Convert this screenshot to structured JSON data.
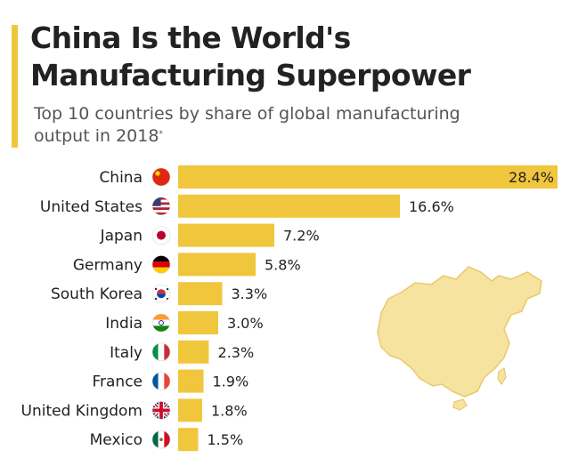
{
  "header": {
    "title_line1": "China Is the World's",
    "title_line2": "Manufacturing Superpower",
    "subtitle_line1": "Top 10 countries by share of global manufacturing",
    "subtitle_line2": "output in 2018",
    "subtitle_mark": "*"
  },
  "colors": {
    "accent": "#f0c63c",
    "bar": "#f0c63c",
    "map": "#f7e3a0",
    "map_stroke": "#e9c96a",
    "text": "#222222"
  },
  "chart_data": {
    "type": "bar",
    "orientation": "horizontal",
    "categories": [
      "China",
      "United States",
      "Japan",
      "Germany",
      "South Korea",
      "India",
      "Italy",
      "France",
      "United Kingdom",
      "Mexico"
    ],
    "values": [
      28.4,
      16.6,
      7.2,
      5.8,
      3.3,
      3.0,
      2.3,
      1.9,
      1.8,
      1.5
    ],
    "value_labels": [
      "28.4%",
      "16.6%",
      "7.2%",
      "5.8%",
      "3.3%",
      "3.0%",
      "2.3%",
      "1.9%",
      "1.8%",
      "1.5%"
    ],
    "flag_icons": [
      "china-flag-icon",
      "usa-flag-icon",
      "japan-flag-icon",
      "germany-flag-icon",
      "south-korea-flag-icon",
      "india-flag-icon",
      "italy-flag-icon",
      "france-flag-icon",
      "uk-flag-icon",
      "mexico-flag-icon"
    ],
    "xlim": [
      0,
      28.4
    ],
    "grid": false,
    "title": "China Is the World's Manufacturing Superpower",
    "subtitle": "Top 10 countries by share of global manufacturing output in 2018*",
    "xlabel": "",
    "ylabel": ""
  }
}
